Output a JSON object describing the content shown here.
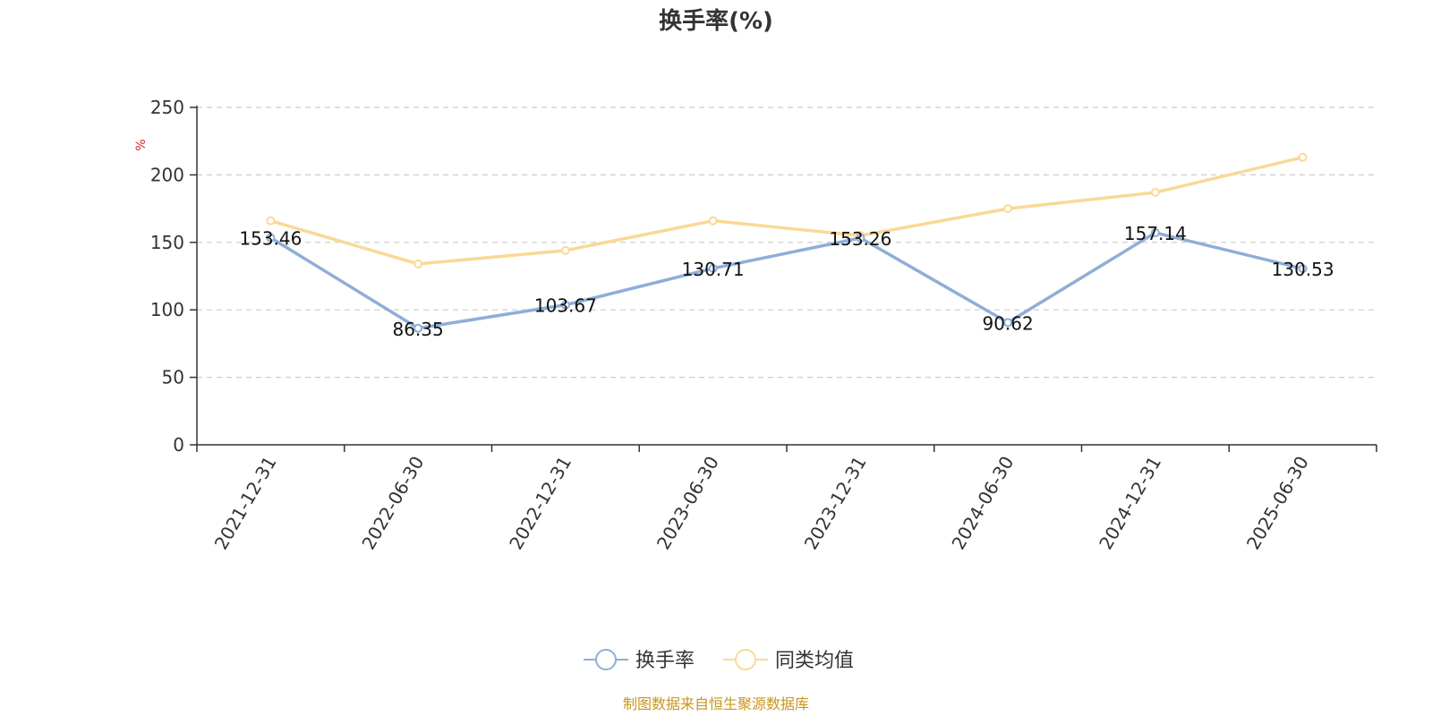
{
  "chart_data": {
    "type": "line",
    "title": "换手率(%)",
    "ylabel": "%",
    "ylim": [
      0,
      250
    ],
    "yticks": [
      0,
      50,
      100,
      150,
      200,
      250
    ],
    "grid": true,
    "legend_position": "bottom",
    "categories": [
      "2021-12-31",
      "2022-06-30",
      "2022-12-31",
      "2023-06-30",
      "2023-12-31",
      "2024-06-30",
      "2024-12-31",
      "2025-06-30"
    ],
    "series": [
      {
        "name": "换手率",
        "color": "#8eaed8",
        "values": [
          153.46,
          86.35,
          103.67,
          130.71,
          153.26,
          90.62,
          157.14,
          130.53
        ],
        "labels": [
          "153.46",
          "86.35",
          "103.67",
          "130.71",
          "153.26",
          "90.62",
          "157.14",
          "130.53"
        ]
      },
      {
        "name": "同类均值",
        "color": "#fad996",
        "values": [
          166,
          134,
          144,
          166,
          155,
          175,
          187,
          213
        ]
      }
    ]
  },
  "source": "制图数据来自恒生聚源数据库",
  "colors": {
    "axis": "#333333",
    "grid": "#cccccc",
    "unit": "#e02020",
    "source": "#c8961e"
  }
}
